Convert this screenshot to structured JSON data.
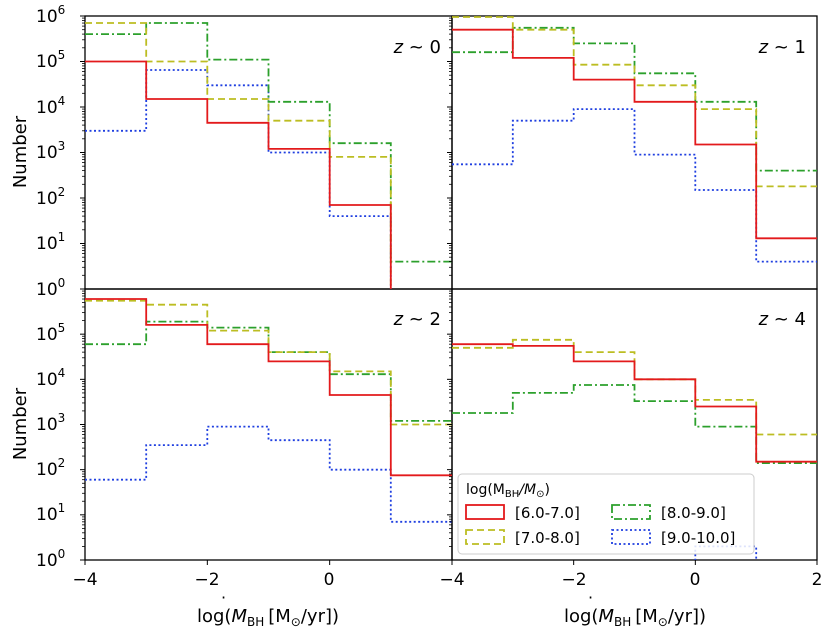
{
  "chart_data": {
    "type": "step-histogram",
    "yscale": "log",
    "ylim": [
      1,
      1000000
    ],
    "xlim": [
      -4,
      2
    ],
    "bin_edges": [
      -4,
      -3,
      -2,
      -1,
      0,
      1,
      2
    ],
    "xticks": [
      "−4",
      "−2",
      "0",
      "−4",
      "−2",
      "0",
      "2"
    ],
    "yticks": [
      {
        "base": "10",
        "exp": "6"
      },
      {
        "base": "10",
        "exp": "5"
      },
      {
        "base": "10",
        "exp": "4"
      },
      {
        "base": "10",
        "exp": "3"
      },
      {
        "base": "10",
        "exp": "2"
      },
      {
        "base": "10",
        "exp": "1"
      },
      {
        "base": "10",
        "exp": "0"
      }
    ],
    "ylabel": "Number",
    "xlabel": {
      "pre": "log(",
      "m": "M",
      "sub": "BH",
      "units": "[M",
      "odot": "⊙",
      "post": "/yr])"
    },
    "legend": {
      "title_pre": "log(M",
      "title_sub": "BH",
      "title_mid": "/M",
      "title_sub2": "⊙",
      "title_post": ")",
      "entries": [
        {
          "label": "[6.0-7.0]",
          "color": "#e31a1c",
          "style": "solid"
        },
        {
          "label": "[7.0-8.0]",
          "color": "#bcbd22",
          "style": "dashed"
        },
        {
          "label": "[8.0-9.0]",
          "color": "#2ca02c",
          "style": "dashdot"
        },
        {
          "label": "[9.0-10.0]",
          "color": "#1f3fe0",
          "style": "dotted"
        }
      ]
    },
    "panels": [
      {
        "name": "z~0",
        "label_z": "z",
        "label_rest": " ~ 0",
        "series": [
          {
            "name": "[6.0-7.0]",
            "values": [
              100000,
              15000,
              4500,
              1200,
              70,
              0
            ]
          },
          {
            "name": "[7.0-8.0]",
            "values": [
              700000,
              100000,
              15000,
              5000,
              800,
              0
            ]
          },
          {
            "name": "[8.0-9.0]",
            "values": [
              400000,
              700000,
              110000,
              13000,
              1600,
              4
            ]
          },
          {
            "name": "[9.0-10.0]",
            "values": [
              3000,
              65000,
              30000,
              1000,
              40,
              0
            ]
          }
        ]
      },
      {
        "name": "z~1",
        "label_z": "z",
        "label_rest": " ~ 1",
        "series": [
          {
            "name": "[6.0-7.0]",
            "values": [
              500000,
              120000,
              40000,
              13000,
              1500,
              13
            ]
          },
          {
            "name": "[7.0-8.0]",
            "values": [
              950000,
              500000,
              85000,
              30000,
              9000,
              180
            ]
          },
          {
            "name": "[8.0-9.0]",
            "values": [
              160000,
              550000,
              250000,
              55000,
              13000,
              400
            ]
          },
          {
            "name": "[9.0-10.0]",
            "values": [
              550,
              5000,
              9000,
              900,
              150,
              4
            ]
          }
        ]
      },
      {
        "name": "z~2",
        "label_z": "z",
        "label_rest": " ~ 2",
        "series": [
          {
            "name": "[6.0-7.0]",
            "values": [
              600000,
              160000,
              60000,
              25000,
              4500,
              75
            ]
          },
          {
            "name": "[7.0-8.0]",
            "values": [
              550000,
              450000,
              120000,
              40000,
              15000,
              1000
            ]
          },
          {
            "name": "[8.0-9.0]",
            "values": [
              60000,
              190000,
              140000,
              40000,
              13000,
              1200
            ]
          },
          {
            "name": "[9.0-10.0]",
            "values": [
              60,
              350,
              900,
              450,
              100,
              7
            ]
          }
        ]
      },
      {
        "name": "z~4",
        "label_z": "z",
        "label_rest": " ~ 4",
        "series": [
          {
            "name": "[6.0-7.0]",
            "values": [
              60000,
              55000,
              25000,
              10000,
              2500,
              150
            ]
          },
          {
            "name": "[7.0-8.0]",
            "values": [
              50000,
              75000,
              40000,
              10000,
              3500,
              600
            ]
          },
          {
            "name": "[8.0-9.0]",
            "values": [
              1800,
              5000,
              7500,
              3300,
              900,
              140
            ]
          },
          {
            "name": "[9.0-10.0]",
            "values": [
              0,
              0,
              0,
              0,
              2,
              0
            ]
          }
        ]
      }
    ]
  }
}
